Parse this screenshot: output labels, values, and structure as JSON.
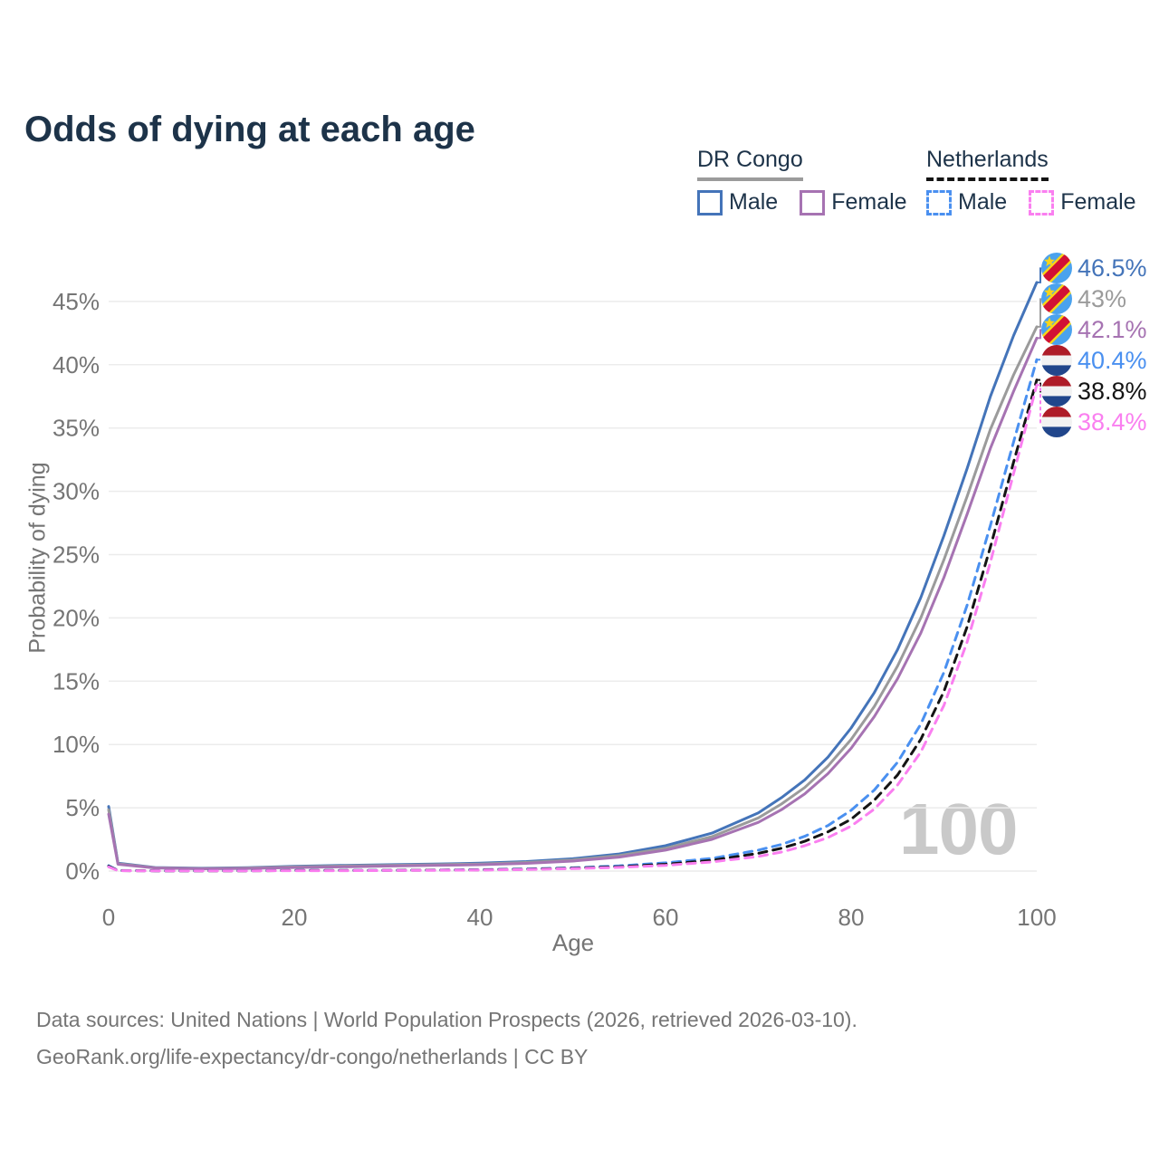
{
  "title": "Odds of dying at each age",
  "legend": {
    "groups": [
      {
        "country": "DR Congo",
        "line_style": "solid",
        "underline_color": "#9b9b9b",
        "items": [
          {
            "label": "Male",
            "color": "#4474b9"
          },
          {
            "label": "Female",
            "color": "#a673b2"
          }
        ]
      },
      {
        "country": "Netherlands",
        "line_style": "dashed",
        "underline_color": "#141414",
        "items": [
          {
            "label": "Male",
            "color": "#4a90f0"
          },
          {
            "label": "Female",
            "color": "#fa7ff0"
          }
        ]
      }
    ]
  },
  "watermark": "100",
  "source": {
    "line1": "Data sources: United Nations | World Population Prospects (2026, retrieved 2026-03-10).",
    "line2": "GeoRank.org/life-expectancy/dr-congo/netherlands | CC BY"
  },
  "colors": {
    "grid": "#ececec",
    "axis_text": "#757575",
    "title_text": "#1d3349",
    "watermark": "#c9c9c9"
  },
  "flags": {
    "dr-congo": {
      "background": "#4aa2ee",
      "stripe_red": "#d21034",
      "stripe_yellow": "#f7d518"
    },
    "netherlands": {
      "top_red": "#AE1C28",
      "middle_white": "#f2f2f2",
      "bottom_blue": "#21468B"
    }
  },
  "chart_data": {
    "type": "line",
    "title": "Odds of dying at each age",
    "xlabel": "Age",
    "ylabel": "Probability of dying",
    "xlim": [
      0,
      100
    ],
    "ylim": [
      0,
      47
    ],
    "x_ticks": [
      0,
      20,
      40,
      60,
      80,
      100
    ],
    "y_ticks": [
      0,
      5,
      10,
      15,
      20,
      25,
      30,
      35,
      40,
      45
    ],
    "y_tick_suffix": "%",
    "grid": "horizontal",
    "legend_position": "top-right",
    "series": [
      {
        "id": "dr-congo-male",
        "name": "DR Congo Male",
        "flag": "dr-congo",
        "color": "#4474b9",
        "dash": "solid",
        "end_label": "46.5%",
        "points": [
          [
            0,
            5.1
          ],
          [
            1,
            0.62
          ],
          [
            5,
            0.28
          ],
          [
            10,
            0.22
          ],
          [
            15,
            0.27
          ],
          [
            20,
            0.37
          ],
          [
            25,
            0.44
          ],
          [
            30,
            0.5
          ],
          [
            35,
            0.55
          ],
          [
            40,
            0.62
          ],
          [
            45,
            0.75
          ],
          [
            50,
            0.97
          ],
          [
            55,
            1.35
          ],
          [
            60,
            2.0
          ],
          [
            65,
            3.0
          ],
          [
            70,
            4.6
          ],
          [
            72.5,
            5.8
          ],
          [
            75,
            7.2
          ],
          [
            77.5,
            9.0
          ],
          [
            80,
            11.3
          ],
          [
            82.5,
            14.1
          ],
          [
            85,
            17.5
          ],
          [
            87.5,
            21.6
          ],
          [
            90,
            26.5
          ],
          [
            92.5,
            31.8
          ],
          [
            95,
            37.5
          ],
          [
            97.5,
            42.3
          ],
          [
            100,
            46.5
          ]
        ]
      },
      {
        "id": "dr-congo-both",
        "name": "DR Congo Both sexes",
        "flag": "dr-congo",
        "color": "#9b9b9b",
        "dash": "solid",
        "end_label": "43%",
        "points": [
          [
            0,
            4.85
          ],
          [
            1,
            0.58
          ],
          [
            5,
            0.26
          ],
          [
            10,
            0.2
          ],
          [
            15,
            0.24
          ],
          [
            20,
            0.33
          ],
          [
            25,
            0.39
          ],
          [
            30,
            0.45
          ],
          [
            35,
            0.5
          ],
          [
            40,
            0.56
          ],
          [
            45,
            0.68
          ],
          [
            50,
            0.88
          ],
          [
            55,
            1.22
          ],
          [
            60,
            1.8
          ],
          [
            65,
            2.72
          ],
          [
            70,
            4.2
          ],
          [
            72.5,
            5.3
          ],
          [
            75,
            6.6
          ],
          [
            77.5,
            8.3
          ],
          [
            80,
            10.4
          ],
          [
            82.5,
            13.0
          ],
          [
            85,
            16.2
          ],
          [
            87.5,
            20.0
          ],
          [
            90,
            24.6
          ],
          [
            92.5,
            29.6
          ],
          [
            95,
            34.9
          ],
          [
            97.5,
            39.2
          ],
          [
            100,
            43.0
          ]
        ]
      },
      {
        "id": "dr-congo-female",
        "name": "DR Congo Female",
        "flag": "dr-congo",
        "color": "#a673b2",
        "dash": "solid",
        "end_label": "42.1%",
        "points": [
          [
            0,
            4.5
          ],
          [
            1,
            0.54
          ],
          [
            5,
            0.24
          ],
          [
            10,
            0.18
          ],
          [
            15,
            0.21
          ],
          [
            20,
            0.28
          ],
          [
            25,
            0.33
          ],
          [
            30,
            0.39
          ],
          [
            35,
            0.44
          ],
          [
            40,
            0.5
          ],
          [
            45,
            0.61
          ],
          [
            50,
            0.79
          ],
          [
            55,
            1.1
          ],
          [
            60,
            1.65
          ],
          [
            65,
            2.5
          ],
          [
            70,
            3.85
          ],
          [
            72.5,
            4.85
          ],
          [
            75,
            6.1
          ],
          [
            77.5,
            7.7
          ],
          [
            80,
            9.7
          ],
          [
            82.5,
            12.2
          ],
          [
            85,
            15.2
          ],
          [
            87.5,
            18.8
          ],
          [
            90,
            23.2
          ],
          [
            92.5,
            28.2
          ],
          [
            95,
            33.4
          ],
          [
            97.5,
            37.9
          ],
          [
            100,
            42.1
          ]
        ]
      },
      {
        "id": "netherlands-male",
        "name": "Netherlands Male",
        "flag": "netherlands",
        "color": "#4a90f0",
        "dash": "dashed",
        "end_label": "40.4%",
        "points": [
          [
            0,
            0.42
          ],
          [
            1,
            0.04
          ],
          [
            5,
            0.02
          ],
          [
            10,
            0.02
          ],
          [
            15,
            0.03
          ],
          [
            20,
            0.05
          ],
          [
            25,
            0.05
          ],
          [
            30,
            0.06
          ],
          [
            35,
            0.08
          ],
          [
            40,
            0.11
          ],
          [
            45,
            0.17
          ],
          [
            50,
            0.26
          ],
          [
            55,
            0.41
          ],
          [
            60,
            0.65
          ],
          [
            65,
            1.0
          ],
          [
            70,
            1.65
          ],
          [
            72.5,
            2.1
          ],
          [
            75,
            2.75
          ],
          [
            77.5,
            3.6
          ],
          [
            80,
            4.8
          ],
          [
            82.5,
            6.4
          ],
          [
            85,
            8.6
          ],
          [
            87.5,
            11.6
          ],
          [
            90,
            15.7
          ],
          [
            92.5,
            21.0
          ],
          [
            95,
            27.3
          ],
          [
            97.5,
            33.9
          ],
          [
            100,
            40.4
          ]
        ]
      },
      {
        "id": "netherlands-both",
        "name": "Netherlands Both sexes",
        "flag": "netherlands",
        "color": "#141414",
        "dash": "dashed",
        "end_label": "38.8%",
        "points": [
          [
            0,
            0.38
          ],
          [
            1,
            0.035
          ],
          [
            5,
            0.02
          ],
          [
            10,
            0.02
          ],
          [
            15,
            0.025
          ],
          [
            20,
            0.04
          ],
          [
            25,
            0.04
          ],
          [
            30,
            0.05
          ],
          [
            35,
            0.07
          ],
          [
            40,
            0.09
          ],
          [
            45,
            0.14
          ],
          [
            50,
            0.22
          ],
          [
            55,
            0.34
          ],
          [
            60,
            0.54
          ],
          [
            65,
            0.85
          ],
          [
            70,
            1.4
          ],
          [
            72.5,
            1.8
          ],
          [
            75,
            2.35
          ],
          [
            77.5,
            3.1
          ],
          [
            80,
            4.1
          ],
          [
            82.5,
            5.6
          ],
          [
            85,
            7.6
          ],
          [
            87.5,
            10.4
          ],
          [
            90,
            14.2
          ],
          [
            92.5,
            19.3
          ],
          [
            95,
            25.6
          ],
          [
            97.5,
            32.3
          ],
          [
            100,
            38.8
          ]
        ]
      },
      {
        "id": "netherlands-female",
        "name": "Netherlands Female",
        "flag": "netherlands",
        "color": "#fa7ff0",
        "dash": "dashed",
        "end_label": "38.4%",
        "points": [
          [
            0,
            0.33
          ],
          [
            1,
            0.03
          ],
          [
            5,
            0.015
          ],
          [
            10,
            0.015
          ],
          [
            15,
            0.02
          ],
          [
            20,
            0.03
          ],
          [
            25,
            0.03
          ],
          [
            30,
            0.04
          ],
          [
            35,
            0.06
          ],
          [
            40,
            0.08
          ],
          [
            45,
            0.12
          ],
          [
            50,
            0.19
          ],
          [
            55,
            0.29
          ],
          [
            60,
            0.45
          ],
          [
            65,
            0.72
          ],
          [
            70,
            1.15
          ],
          [
            72.5,
            1.5
          ],
          [
            75,
            2.0
          ],
          [
            77.5,
            2.65
          ],
          [
            80,
            3.55
          ],
          [
            82.5,
            4.9
          ],
          [
            85,
            6.8
          ],
          [
            87.5,
            9.4
          ],
          [
            90,
            13.1
          ],
          [
            92.5,
            18.1
          ],
          [
            95,
            24.4
          ],
          [
            97.5,
            31.4
          ],
          [
            100,
            38.4
          ]
        ]
      }
    ]
  }
}
